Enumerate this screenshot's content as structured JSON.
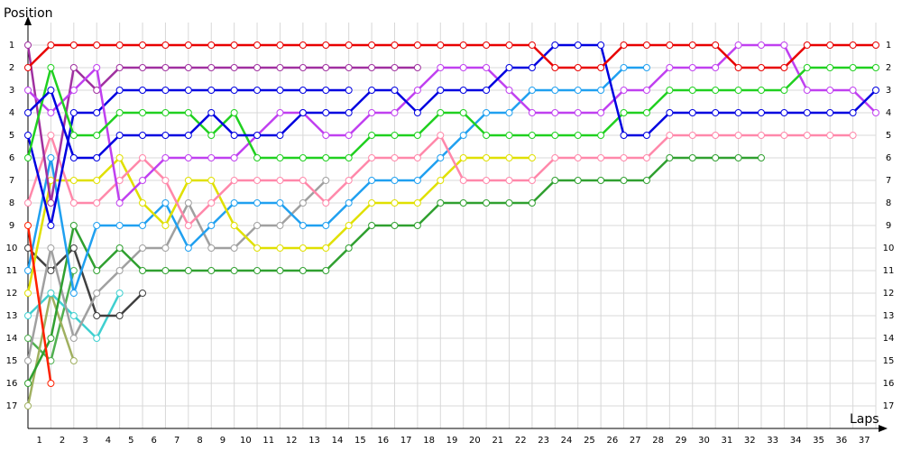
{
  "chart_data": {
    "type": "line",
    "y_label": "Position",
    "x_label": "Laps",
    "x": [
      0,
      1,
      2,
      3,
      4,
      5,
      6,
      7,
      8,
      9,
      10,
      11,
      12,
      13,
      14,
      15,
      16,
      17,
      18,
      19,
      20,
      21,
      22,
      23,
      24,
      25,
      26,
      27,
      28,
      29,
      30,
      31,
      32,
      33,
      34,
      35,
      36,
      37
    ],
    "xlim": [
      0,
      37
    ],
    "ylim": [
      18,
      0
    ],
    "xticks": [
      1,
      2,
      3,
      4,
      5,
      6,
      7,
      8,
      9,
      10,
      11,
      12,
      13,
      14,
      15,
      16,
      17,
      18,
      19,
      20,
      21,
      22,
      23,
      24,
      25,
      26,
      27,
      28,
      29,
      30,
      31,
      32,
      33,
      34,
      35,
      36,
      37
    ],
    "yticks": [
      1,
      2,
      3,
      4,
      5,
      6,
      7,
      8,
      9,
      10,
      11,
      12,
      13,
      14,
      15,
      16,
      17
    ],
    "grid": true,
    "series": [
      {
        "color": "#50b050",
        "values": [
          14,
          15,
          11,
          null,
          null,
          null,
          null,
          null,
          null,
          null,
          null,
          null,
          null,
          null,
          null,
          null,
          null,
          null,
          null,
          null,
          null,
          null,
          null,
          null,
          null,
          null,
          null,
          null,
          null,
          null,
          null,
          null,
          null,
          null,
          null,
          null,
          null,
          null
        ]
      },
      {
        "color": "#a0b060",
        "values": [
          17,
          12,
          15,
          null,
          null,
          null,
          null,
          null,
          null,
          null,
          null,
          null,
          null,
          null,
          null,
          null,
          null,
          null,
          null,
          null,
          null,
          null,
          null,
          null,
          null,
          null,
          null,
          null,
          null,
          null,
          null,
          null,
          null,
          null,
          null,
          null,
          null,
          null
        ]
      },
      {
        "color": "#40d0d0",
        "values": [
          13,
          12,
          13,
          14,
          12,
          null,
          null,
          null,
          null,
          null,
          null,
          null,
          null,
          null,
          null,
          null,
          null,
          null,
          null,
          null,
          null,
          null,
          null,
          null,
          null,
          null,
          null,
          null,
          null,
          null,
          null,
          null,
          null,
          null,
          null,
          null,
          null,
          null
        ]
      },
      {
        "color": "#404040",
        "values": [
          10,
          11,
          10,
          13,
          13,
          12,
          null,
          null,
          null,
          null,
          null,
          null,
          null,
          null,
          null,
          null,
          null,
          null,
          null,
          null,
          null,
          null,
          null,
          null,
          null,
          null,
          null,
          null,
          null,
          null,
          null,
          null,
          null,
          null,
          null,
          null,
          null,
          null
        ]
      },
      {
        "color": "#a0a0a0",
        "values": [
          15,
          10,
          14,
          12,
          11,
          10,
          10,
          8,
          10,
          10,
          9,
          9,
          8,
          7,
          null,
          null,
          null,
          null,
          null,
          null,
          null,
          null,
          null,
          null,
          null,
          null,
          null,
          null,
          null,
          null,
          null,
          null,
          null,
          null,
          null,
          null,
          null,
          null
        ]
      },
      {
        "color": "#30a030",
        "values": [
          16,
          14,
          9,
          11,
          10,
          11,
          11,
          11,
          11,
          11,
          11,
          11,
          11,
          11,
          10,
          9,
          9,
          9,
          8,
          8,
          8,
          8,
          8,
          7,
          7,
          7,
          7,
          7,
          6,
          6,
          6,
          6,
          6,
          null,
          null,
          null,
          null,
          null
        ]
      },
      {
        "color": "#20a0f0",
        "values": [
          11,
          6,
          12,
          9,
          9,
          9,
          8,
          10,
          9,
          8,
          8,
          8,
          9,
          9,
          8,
          7,
          7,
          7,
          6,
          5,
          4,
          4,
          3,
          3,
          3,
          3,
          2,
          2,
          null,
          null,
          null,
          null,
          null,
          null,
          null,
          null,
          null,
          null
        ]
      },
      {
        "color": "#e0e000",
        "values": [
          12,
          7,
          7,
          7,
          6,
          8,
          9,
          7,
          7,
          9,
          10,
          10,
          10,
          10,
          9,
          8,
          8,
          8,
          7,
          6,
          6,
          6,
          6,
          null,
          null,
          null,
          null,
          null,
          null,
          null,
          null,
          null,
          null,
          null,
          null,
          null,
          null,
          null
        ]
      },
      {
        "color": "#ff88aa",
        "values": [
          8,
          5,
          8,
          8,
          7,
          6,
          7,
          9,
          8,
          7,
          7,
          7,
          7,
          8,
          7,
          6,
          6,
          6,
          5,
          7,
          7,
          7,
          7,
          6,
          6,
          6,
          6,
          6,
          5,
          5,
          5,
          5,
          5,
          5,
          5,
          5,
          5,
          null
        ]
      },
      {
        "color": "#a030a0",
        "values": [
          1,
          8,
          2,
          3,
          2,
          2,
          2,
          2,
          2,
          2,
          2,
          2,
          2,
          2,
          2,
          2,
          2,
          2,
          null,
          null,
          null,
          null,
          null,
          null,
          null,
          null,
          null,
          null,
          null,
          null,
          null,
          null,
          null,
          null,
          null,
          null,
          null,
          null
        ]
      },
      {
        "color": "#0000e0",
        "values": [
          5,
          9,
          4,
          4,
          3,
          3,
          3,
          3,
          3,
          3,
          3,
          3,
          3,
          3,
          3,
          null,
          null,
          null,
          null,
          null,
          null,
          null,
          null,
          null,
          null,
          null,
          null,
          null,
          null,
          null,
          null,
          null,
          null,
          null,
          null,
          null,
          null,
          null
        ]
      },
      {
        "color": "#c040f0",
        "values": [
          3,
          4,
          3,
          2,
          8,
          7,
          6,
          6,
          6,
          6,
          5,
          4,
          4,
          5,
          5,
          4,
          4,
          3,
          2,
          2,
          2,
          3,
          4,
          4,
          4,
          4,
          3,
          3,
          2,
          2,
          2,
          1,
          1,
          1,
          3,
          3,
          3,
          4
        ]
      },
      {
        "color": "#20d020",
        "values": [
          6,
          2,
          5,
          5,
          4,
          4,
          4,
          4,
          5,
          4,
          6,
          6,
          6,
          6,
          6,
          5,
          5,
          5,
          4,
          4,
          5,
          5,
          5,
          5,
          5,
          5,
          4,
          4,
          3,
          3,
          3,
          3,
          3,
          3,
          2,
          2,
          2,
          2
        ]
      },
      {
        "color": "#0000e0",
        "values": [
          4,
          3,
          6,
          6,
          5,
          5,
          5,
          5,
          4,
          5,
          5,
          5,
          4,
          4,
          4,
          3,
          3,
          4,
          3,
          3,
          3,
          2,
          2,
          1,
          1,
          1,
          5,
          5,
          4,
          4,
          4,
          4,
          4,
          4,
          4,
          4,
          4,
          3
        ]
      },
      {
        "color": "#ff2000",
        "values": [
          9,
          16,
          null,
          null,
          null,
          null,
          null,
          null,
          null,
          null,
          null,
          null,
          null,
          null,
          null,
          null,
          null,
          null,
          null,
          null,
          null,
          null,
          null,
          null,
          null,
          null,
          null,
          null,
          null,
          null,
          null,
          null,
          null,
          null,
          null,
          null,
          null,
          null
        ]
      },
      {
        "color": "#e80000",
        "values": [
          2,
          1,
          1,
          1,
          1,
          1,
          1,
          1,
          1,
          1,
          1,
          1,
          1,
          1,
          1,
          1,
          1,
          1,
          1,
          1,
          1,
          1,
          1,
          2,
          2,
          2,
          1,
          1,
          1,
          1,
          1,
          2,
          2,
          2,
          1,
          1,
          1,
          1
        ]
      }
    ]
  }
}
